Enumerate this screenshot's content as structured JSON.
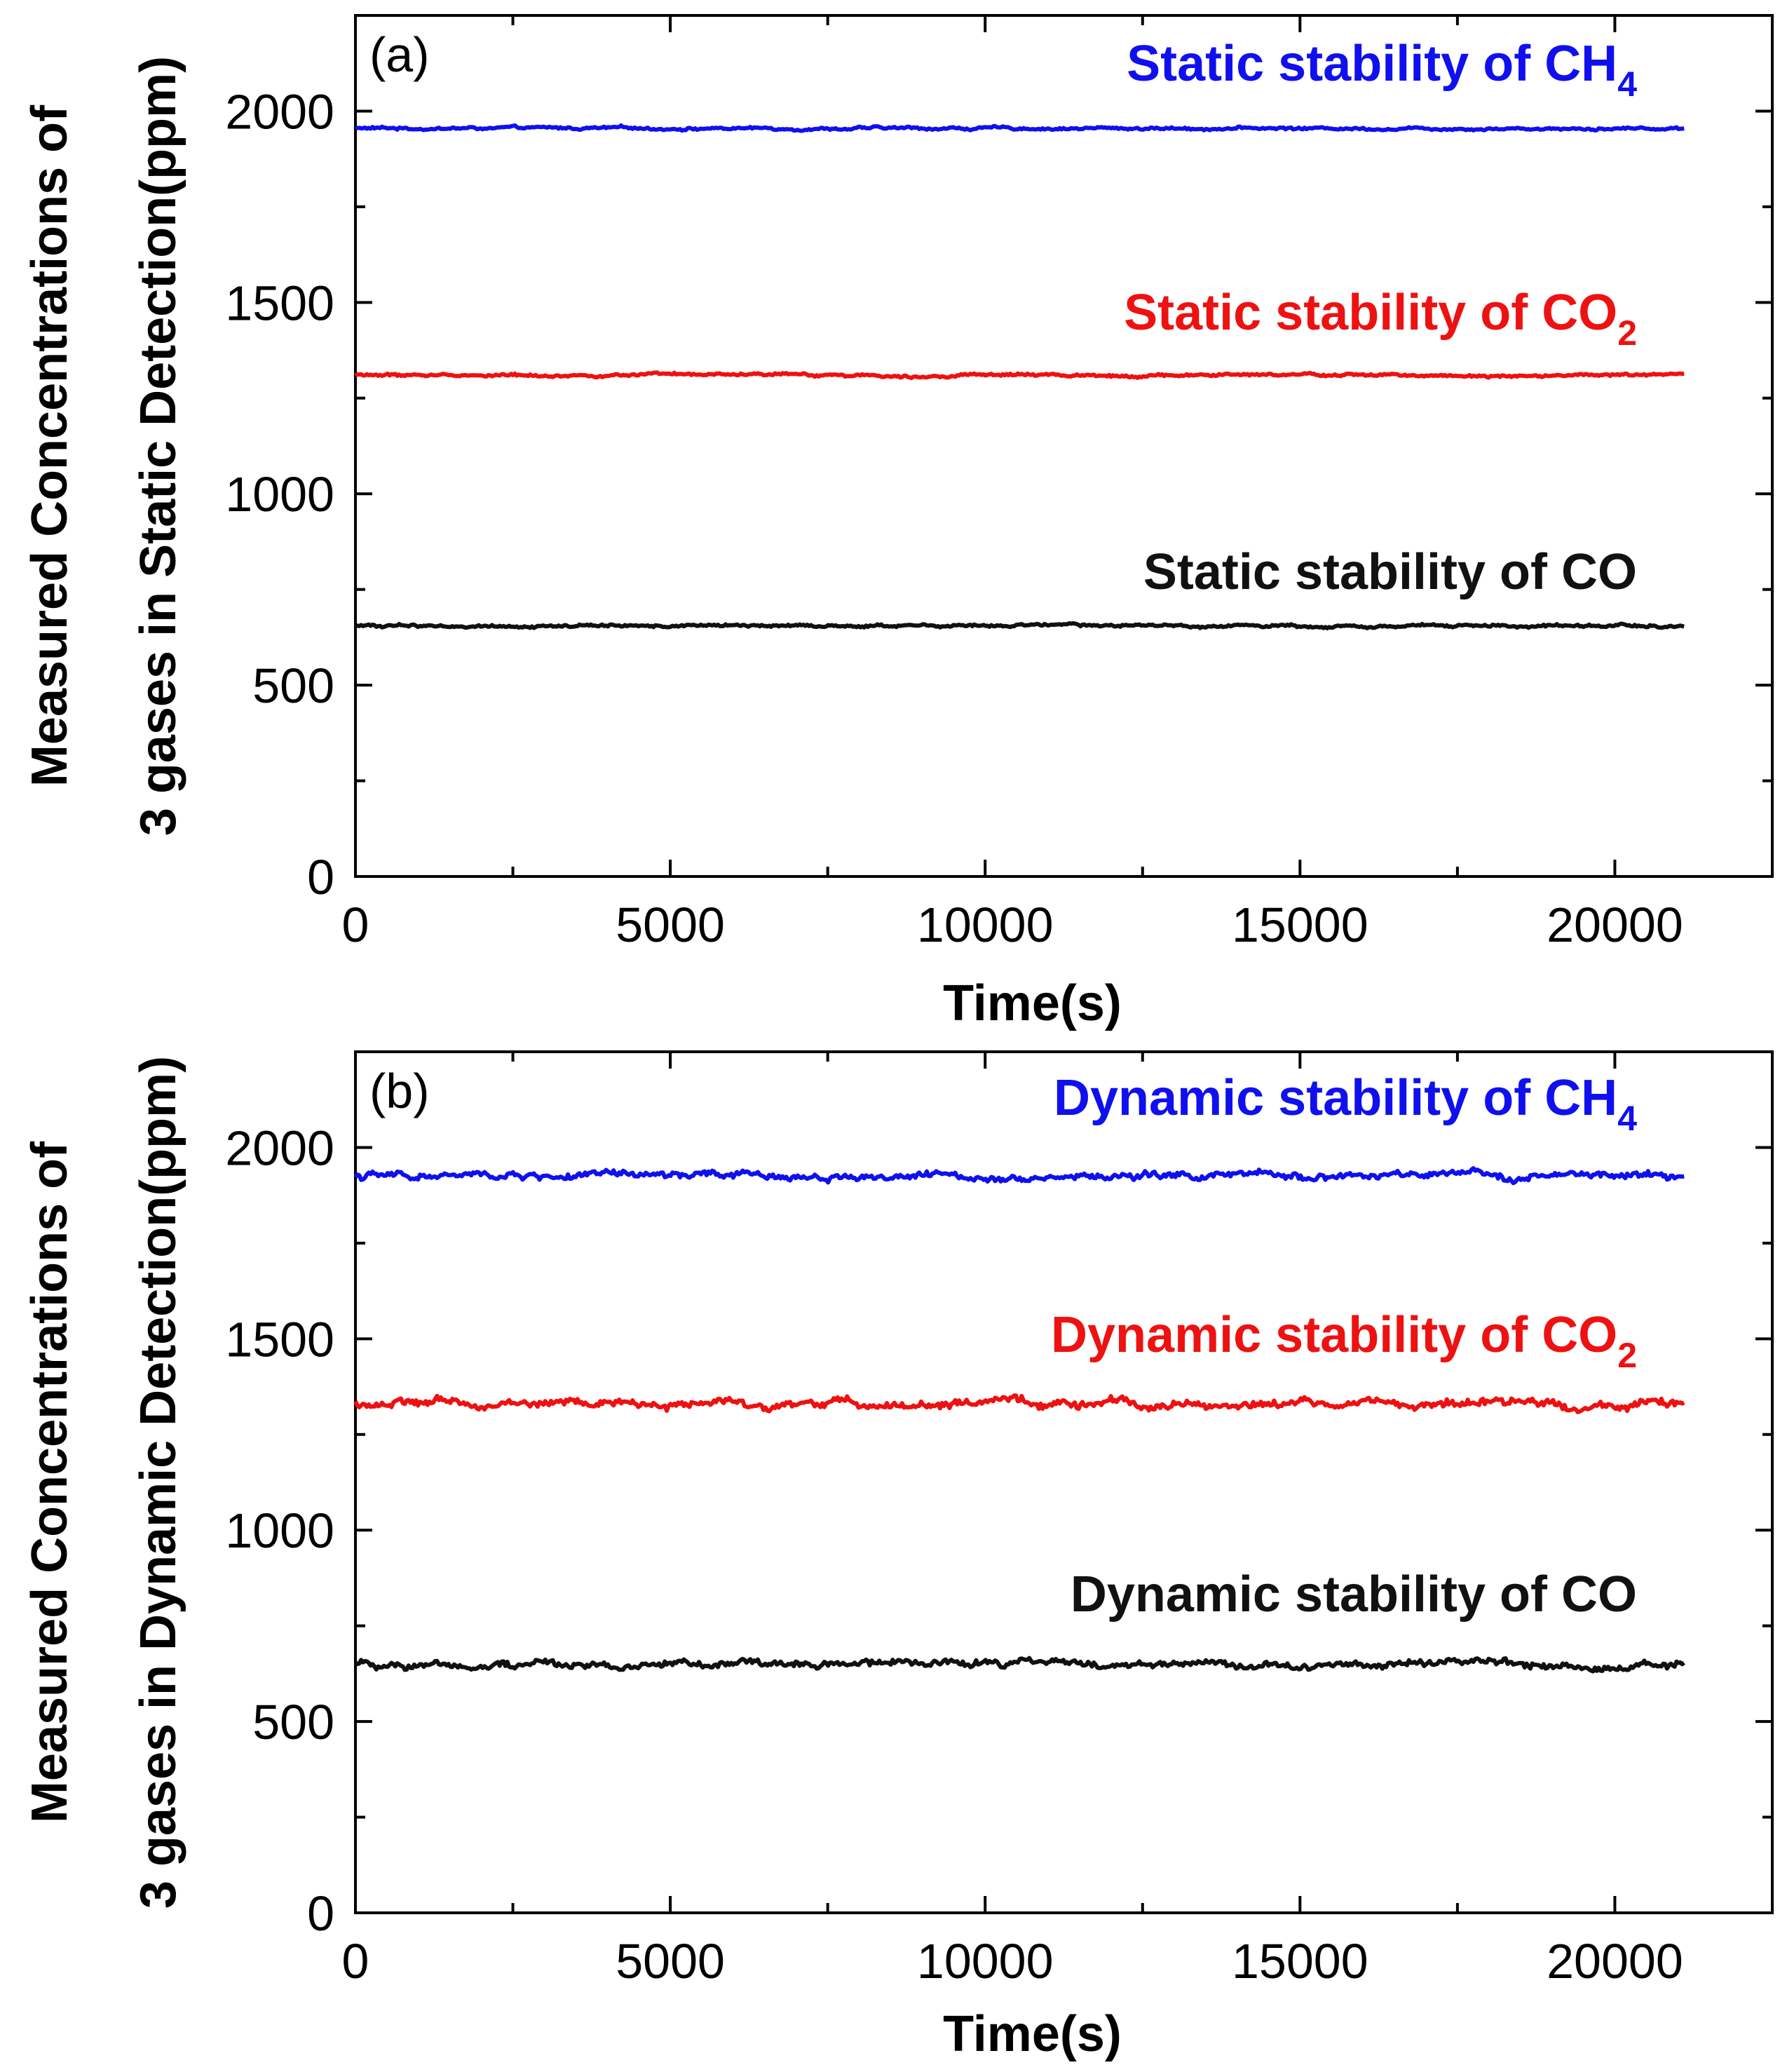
{
  "chart_data": [
    {
      "type": "line",
      "panel_label": "(a)",
      "xlabel": "Time(s)",
      "ylabel_line1": "Measured Concentrations of",
      "ylabel_line2": "3 gases in Static Detection(ppm)",
      "xlim": [
        0,
        22500
      ],
      "ylim": [
        0,
        2250
      ],
      "x_ticks": [
        "0",
        "5000",
        "10000",
        "15000",
        "20000"
      ],
      "y_ticks": [
        "0",
        "500",
        "1000",
        "1500",
        "2000"
      ],
      "x_range": [
        0,
        21100
      ],
      "series": [
        {
          "name": "CH4",
          "label_prefix": "Static stability of CH",
          "label_sub": "4",
          "color": "#1010ee",
          "mean": 1955,
          "noise": 5
        },
        {
          "name": "CO2",
          "label_prefix": "Static stability of CO",
          "label_sub": "2",
          "color": "#ee1111",
          "mean": 1310,
          "noise": 5
        },
        {
          "name": "CO",
          "label_prefix": "Static stability of CO",
          "label_sub": "",
          "color": "#111111",
          "mean": 655,
          "noise": 5
        }
      ]
    },
    {
      "type": "line",
      "panel_label": "(b)",
      "xlabel": "Time(s)",
      "ylabel_line1": "Measured Concentrations of",
      "ylabel_line2": "3 gases in Dynamic Detection(ppm)",
      "xlim": [
        0,
        22500
      ],
      "ylim": [
        0,
        2250
      ],
      "x_ticks": [
        "0",
        "5000",
        "10000",
        "15000",
        "20000"
      ],
      "y_ticks": [
        "0",
        "500",
        "1000",
        "1500",
        "2000"
      ],
      "x_range": [
        0,
        21100
      ],
      "series": [
        {
          "name": "CH4",
          "label_prefix": "Dynamic stability of CH",
          "label_sub": "4",
          "color": "#1010ee",
          "mean": 1925,
          "noise": 14
        },
        {
          "name": "CO2",
          "label_prefix": "Dynamic stability of CO",
          "label_sub": "2",
          "color": "#ee1111",
          "mean": 1330,
          "noise": 16
        },
        {
          "name": "CO",
          "label_prefix": "Dynamic stability of CO",
          "label_sub": "",
          "color": "#111111",
          "mean": 650,
          "noise": 14
        }
      ]
    }
  ]
}
